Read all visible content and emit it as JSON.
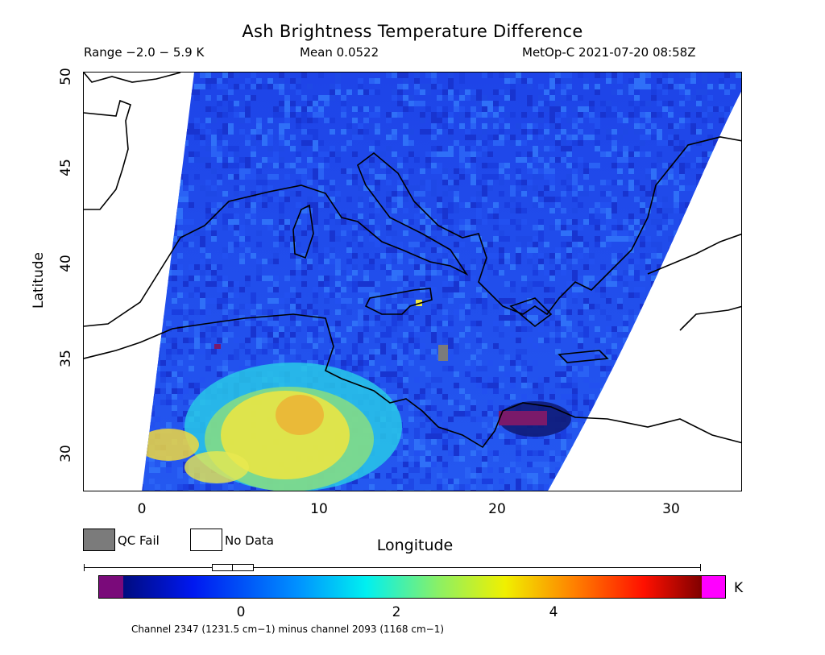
{
  "title": "Ash Brightness Temperature Difference",
  "range_text": "Range −2.0 − 5.9 K",
  "mean_text": "Mean 0.0522",
  "satellite_text": "MetOp-C 2021-07-20 08:58Z",
  "axes": {
    "x_label": "Longitude",
    "y_label": "Latitude",
    "x_ticks": [
      "0",
      "10",
      "20",
      "30"
    ],
    "y_ticks": [
      "50",
      "45",
      "40",
      "35",
      "30"
    ],
    "x_range": [
      -3.3,
      33.8
    ],
    "y_range": [
      28,
      50
    ]
  },
  "legend": {
    "qc_fail": "QC Fail",
    "no_data": "No Data",
    "qc_color": "#7b7b7b"
  },
  "colorbar": {
    "unit": "K",
    "ticks": [
      "0",
      "2",
      "4"
    ],
    "tick_values": [
      0,
      2,
      4
    ],
    "range": [
      -1.5,
      6.0
    ],
    "under_color": "#7a0a7a",
    "over_color": "#ff00ff"
  },
  "channel_text": "Channel 2347 (1231.5 cm−1) minus channel 2093 (1168 cm−1)"
}
